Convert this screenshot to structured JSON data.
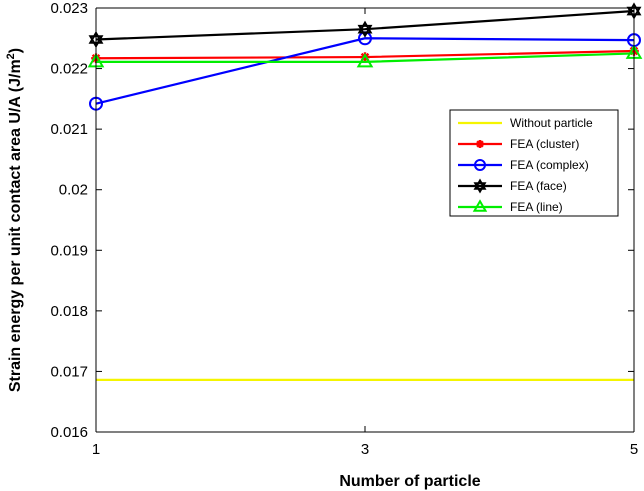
{
  "chart_data": {
    "type": "line",
    "title": "",
    "xlabel": "Number of particle",
    "ylabel": "Strain energy per unit contact area U/A (J/m",
    "ylabel_sup": "2",
    "ylabel_close": ")",
    "xlim": [
      1,
      5
    ],
    "ylim": [
      0.016,
      0.023
    ],
    "x_ticks": [
      1,
      3,
      5
    ],
    "x_tick_labels": [
      "1",
      "3",
      "5"
    ],
    "y_ticks": [
      0.016,
      0.017,
      0.018,
      0.019,
      0.02,
      0.021,
      0.022,
      0.023
    ],
    "y_tick_labels": [
      "0.016",
      "0.017",
      "0.018",
      "0.019",
      "0.02",
      "0.021",
      "0.022",
      "0.023"
    ],
    "grid": false,
    "legend_position": "right",
    "series": [
      {
        "name": "Without particle",
        "color": "#f5f500",
        "marker": "none",
        "x": [
          1,
          3,
          5
        ],
        "values": [
          0.01686,
          0.01686,
          0.01686
        ]
      },
      {
        "name": "FEA (cluster)",
        "color": "#ff0000",
        "marker": "asterisk",
        "x": [
          1,
          3,
          5
        ],
        "values": [
          0.02217,
          0.02219,
          0.02229
        ]
      },
      {
        "name": "FEA (complex)",
        "color": "#0000ff",
        "marker": "circle",
        "x": [
          1,
          3,
          5
        ],
        "values": [
          0.02142,
          0.0225,
          0.02247
        ]
      },
      {
        "name": "FEA (face)",
        "color": "#000000",
        "marker": "hexagram",
        "x": [
          1,
          3,
          5
        ],
        "values": [
          0.02248,
          0.02265,
          0.02295
        ]
      },
      {
        "name": "FEA (line)",
        "color": "#00ee00",
        "marker": "triangle",
        "x": [
          1,
          3,
          5
        ],
        "values": [
          0.02211,
          0.02211,
          0.02225
        ]
      }
    ]
  }
}
